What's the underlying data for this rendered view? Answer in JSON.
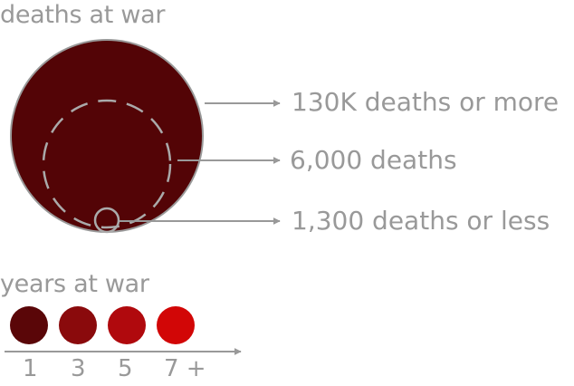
{
  "size_legend": {
    "title": "deaths at war",
    "labels": {
      "large": "130K deaths or more",
      "medium": "6,000 deaths",
      "small": "1,300 deaths or less"
    }
  },
  "color_legend": {
    "title": "years at war",
    "ticks": [
      "1",
      "3",
      "5",
      "7 +"
    ],
    "colors": [
      "#5a0608",
      "#8a0a0c",
      "#b0090d",
      "#d20606"
    ]
  },
  "colors": {
    "large_circle_fill": "#530406",
    "circle_outline": "#999999",
    "arrow": "#999999",
    "text": "#999999"
  }
}
